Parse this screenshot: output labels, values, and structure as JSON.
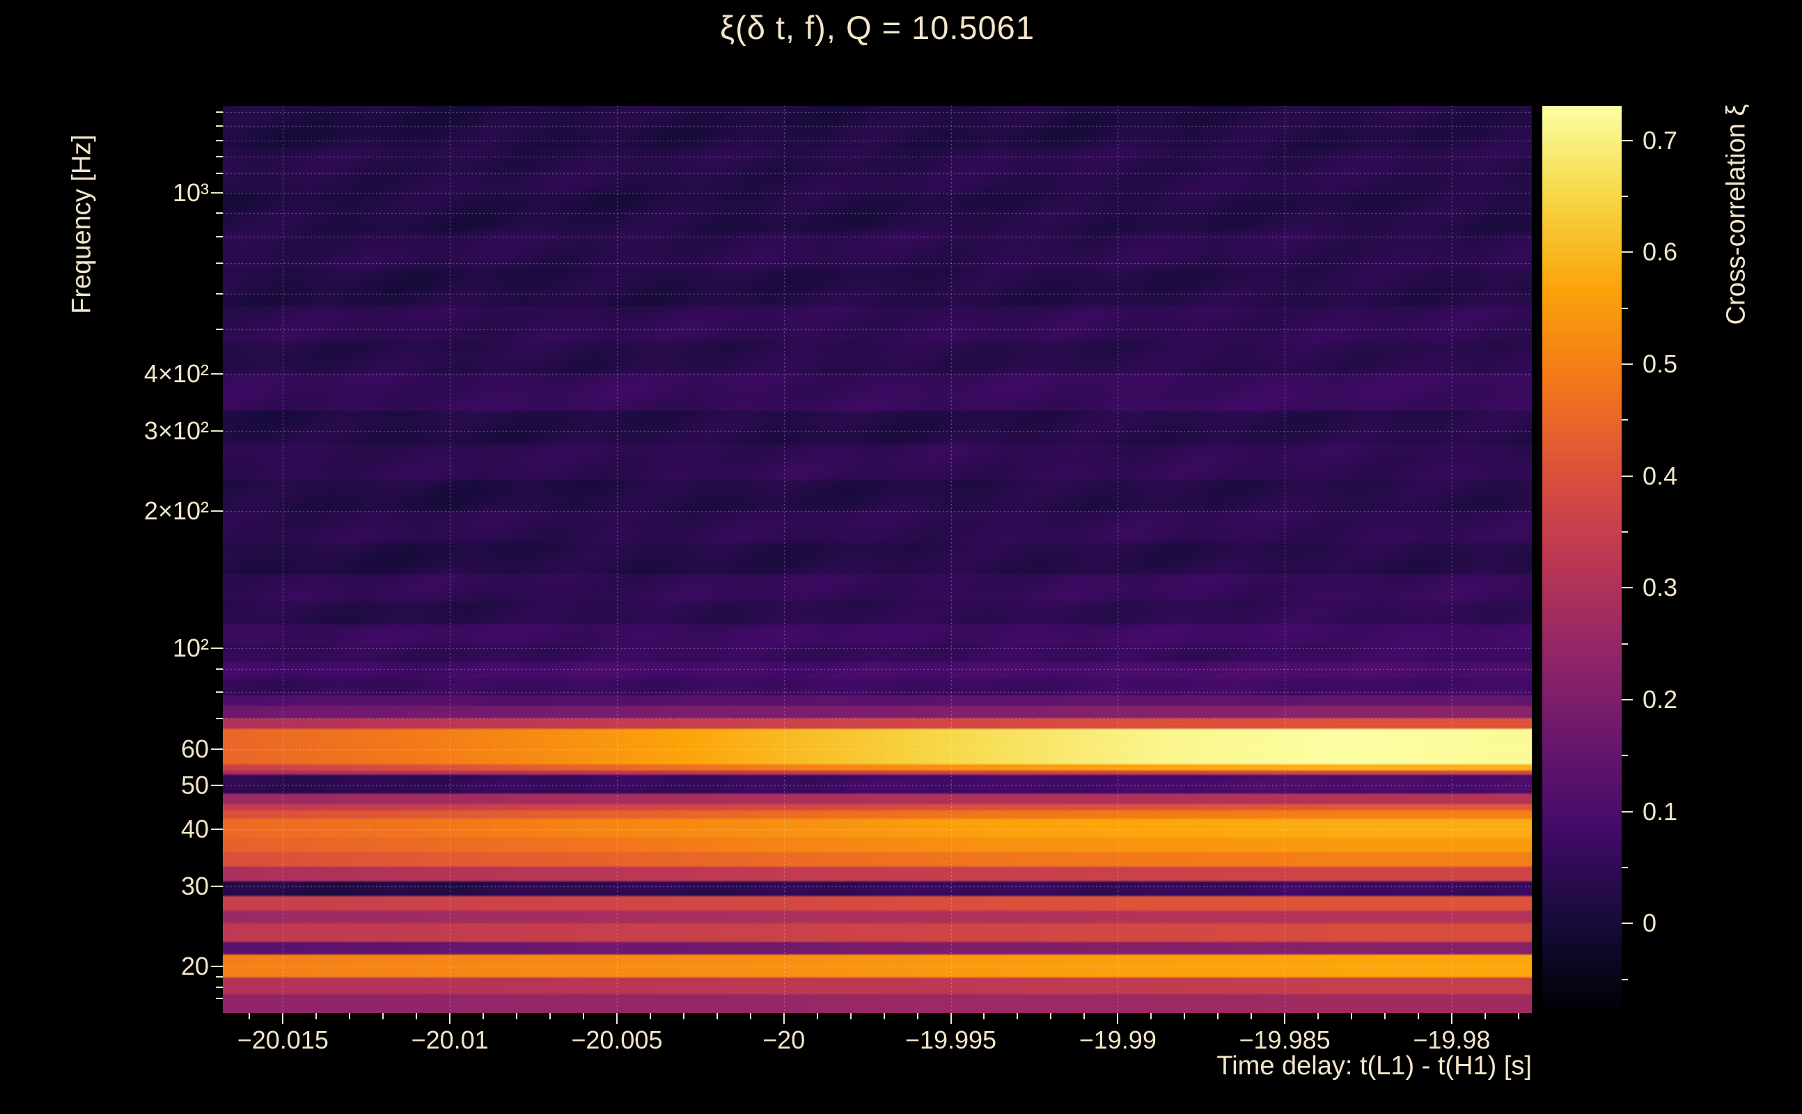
{
  "page": {
    "background": "#000000",
    "text_color": "#f3e5c9"
  },
  "chart_data": {
    "type": "heatmap",
    "title": "ξ(δ t, f), Q = 10.5061",
    "xlabel": "Time delay: t(L1) - t(H1) [s]",
    "ylabel": "Frequency [Hz]",
    "colorbar_label": "Cross-correlation ξ",
    "colormap": "inferno",
    "grid": "dotted",
    "x_range": [
      -20.0168,
      -19.9776
    ],
    "x_major_ticks": [
      -20.015,
      -20.01,
      -20.005,
      -20,
      -19.995,
      -19.99,
      -19.985,
      -19.98
    ],
    "x_tick_labels": [
      "−20.015",
      "−20.01",
      "−20.005",
      "−20",
      "−19.995",
      "−19.99",
      "−19.985",
      "−19.98"
    ],
    "x_minor_step": 0.001,
    "y_scale": "log",
    "y_range": [
      15.8,
      1550
    ],
    "y_major_ticks": [
      20,
      30,
      40,
      50,
      60,
      100,
      200,
      300,
      400,
      1000
    ],
    "y_tick_labels": [
      "20",
      "30",
      "40",
      "50",
      "60",
      "10²",
      "2×10²",
      "3×10²",
      "4×10²",
      "10³"
    ],
    "y_minor_ticks": [
      17,
      18,
      19,
      70,
      80,
      90,
      500,
      600,
      700,
      800,
      900,
      1100,
      1200,
      1300,
      1400,
      1500
    ],
    "grid_y": [
      20,
      30,
      40,
      50,
      60,
      70,
      80,
      90,
      100,
      200,
      300,
      400,
      500,
      600,
      700,
      800,
      900,
      1000,
      1100,
      1200,
      1300,
      1400,
      1500
    ],
    "z_range": [
      -0.08,
      0.731
    ],
    "colorbar_ticks": [
      0,
      0.1,
      0.2,
      0.3,
      0.4,
      0.5,
      0.6,
      0.7
    ],
    "colorbar_tick_labels": [
      "0",
      "0.1",
      "0.2",
      "0.3",
      "0.4",
      "0.5",
      "0.6",
      "0.7"
    ],
    "colorbar_minor_ticks": [
      -0.05,
      0.05,
      0.15,
      0.25,
      0.35,
      0.45,
      0.55,
      0.65
    ],
    "colormap_stops": [
      [
        0.0,
        0,
        0,
        4
      ],
      [
        0.1,
        22,
        11,
        57
      ],
      [
        0.2,
        66,
        10,
        104
      ],
      [
        0.3,
        106,
        23,
        110
      ],
      [
        0.4,
        147,
        38,
        103
      ],
      [
        0.5,
        188,
        55,
        84
      ],
      [
        0.6,
        221,
        81,
        58
      ],
      [
        0.7,
        243,
        120,
        25
      ],
      [
        0.8,
        252,
        165,
        10
      ],
      [
        0.9,
        246,
        215,
        70
      ],
      [
        1.0,
        252,
        255,
        164
      ]
    ],
    "time_bins": [
      -20.0168,
      -20.0112,
      -20.0056,
      -20.0,
      -19.9944,
      -19.9888,
      -19.9832,
      -19.9776
    ],
    "bands": [
      {
        "f_lo": 15.8,
        "f_hi": 17.3,
        "xi": [
          0.24,
          0.24,
          0.25,
          0.25,
          0.26,
          0.26,
          0.27,
          0.27
        ]
      },
      {
        "f_lo": 17.3,
        "f_hi": 19.0,
        "xi": [
          0.31,
          0.31,
          0.32,
          0.33,
          0.33,
          0.34,
          0.35,
          0.35
        ]
      },
      {
        "f_lo": 19.0,
        "f_hi": 21.3,
        "xi": [
          0.5,
          0.51,
          0.52,
          0.53,
          0.55,
          0.56,
          0.57,
          0.57
        ]
      },
      {
        "f_lo": 21.3,
        "f_hi": 22.6,
        "xi": [
          0.13,
          0.15,
          0.17,
          0.18,
          0.2,
          0.21,
          0.22,
          0.22
        ]
      },
      {
        "f_lo": 22.6,
        "f_hi": 24.8,
        "xi": [
          0.33,
          0.34,
          0.35,
          0.36,
          0.37,
          0.38,
          0.39,
          0.39
        ]
      },
      {
        "f_lo": 24.8,
        "f_hi": 26.6,
        "xi": [
          0.26,
          0.27,
          0.28,
          0.29,
          0.3,
          0.31,
          0.31,
          0.31
        ]
      },
      {
        "f_lo": 26.6,
        "f_hi": 28.5,
        "xi": [
          0.35,
          0.36,
          0.37,
          0.38,
          0.4,
          0.41,
          0.41,
          0.41
        ]
      },
      {
        "f_lo": 28.5,
        "f_hi": 30.8,
        "xi": [
          0.02,
          0.03,
          0.04,
          0.05,
          0.06,
          0.06,
          0.07,
          0.07
        ]
      },
      {
        "f_lo": 30.8,
        "f_hi": 33.0,
        "xi": [
          0.29,
          0.31,
          0.32,
          0.34,
          0.35,
          0.36,
          0.37,
          0.37
        ]
      },
      {
        "f_lo": 33.0,
        "f_hi": 35.5,
        "xi": [
          0.4,
          0.42,
          0.44,
          0.46,
          0.48,
          0.49,
          0.5,
          0.5
        ]
      },
      {
        "f_lo": 35.5,
        "f_hi": 38.5,
        "xi": [
          0.44,
          0.46,
          0.48,
          0.51,
          0.53,
          0.54,
          0.55,
          0.55
        ]
      },
      {
        "f_lo": 38.5,
        "f_hi": 42.0,
        "xi": [
          0.46,
          0.48,
          0.51,
          0.53,
          0.56,
          0.57,
          0.58,
          0.58
        ]
      },
      {
        "f_lo": 42.0,
        "f_hi": 44.0,
        "xi": [
          0.4,
          0.42,
          0.44,
          0.46,
          0.48,
          0.49,
          0.5,
          0.5
        ]
      },
      {
        "f_lo": 44.0,
        "f_hi": 45.5,
        "xi": [
          0.34,
          0.35,
          0.37,
          0.38,
          0.4,
          0.41,
          0.42,
          0.42
        ]
      },
      {
        "f_lo": 45.5,
        "f_hi": 48.0,
        "xi": [
          0.26,
          0.27,
          0.28,
          0.29,
          0.3,
          0.3,
          0.31,
          0.31
        ]
      },
      {
        "f_lo": 48.0,
        "f_hi": 52.5,
        "xi": [
          0.04,
          0.05,
          0.06,
          0.07,
          0.08,
          0.09,
          0.1,
          0.1
        ]
      },
      {
        "f_lo": 52.5,
        "f_hi": 54.0,
        "xi": [
          0.28,
          0.3,
          0.32,
          0.34,
          0.36,
          0.37,
          0.38,
          0.38
        ]
      },
      {
        "f_lo": 54.0,
        "f_hi": 55.5,
        "xi": [
          0.36,
          0.4,
          0.45,
          0.5,
          0.54,
          0.57,
          0.59,
          0.59
        ]
      },
      {
        "f_lo": 55.5,
        "f_hi": 66.5,
        "xi": [
          0.45,
          0.49,
          0.54,
          0.6,
          0.66,
          0.71,
          0.73,
          0.72
        ]
      },
      {
        "f_lo": 66.5,
        "f_hi": 70.0,
        "xi": [
          0.3,
          0.32,
          0.34,
          0.36,
          0.38,
          0.4,
          0.41,
          0.41
        ]
      },
      {
        "f_lo": 70.0,
        "f_hi": 74.5,
        "xi": [
          0.17,
          0.18,
          0.19,
          0.2,
          0.21,
          0.22,
          0.23,
          0.23
        ]
      },
      {
        "f_lo": 74.5,
        "f_hi": 79.0,
        "xi": [
          0.11,
          0.12,
          0.12,
          0.13,
          0.14,
          0.14,
          0.15,
          0.15
        ]
      },
      {
        "f_lo": 79.0,
        "f_hi": 86.0,
        "xi": [
          0.06,
          0.06,
          0.07,
          0.07,
          0.07,
          0.08,
          0.08,
          0.08
        ]
      },
      {
        "f_lo": 86.0,
        "f_hi": 93.0,
        "xi": [
          0.08,
          0.08,
          0.09,
          0.09,
          0.09,
          0.1,
          0.1,
          0.1
        ]
      },
      {
        "f_lo": 93.0,
        "f_hi": 102.0,
        "xi": [
          0.05,
          0.05,
          0.06,
          0.06,
          0.06,
          0.06,
          0.07,
          0.07
        ]
      },
      {
        "f_lo": 102.0,
        "f_hi": 113.0,
        "xi": [
          0.065,
          0.065,
          0.07,
          0.07,
          0.075,
          0.075,
          0.08,
          0.08
        ]
      },
      {
        "f_lo": 113.0,
        "f_hi": 127.0,
        "xi": [
          0.03,
          0.03,
          0.035,
          0.04,
          0.04,
          0.045,
          0.05,
          0.05
        ]
      },
      {
        "f_lo": 127.0,
        "f_hi": 146.0,
        "xi": [
          0.05,
          0.05,
          0.05,
          0.055,
          0.055,
          0.06,
          0.06,
          0.06
        ]
      },
      {
        "f_lo": 146.0,
        "f_hi": 170.0,
        "xi": [
          0.02,
          0.02,
          0.025,
          0.025,
          0.03,
          0.03,
          0.03,
          0.03
        ]
      },
      {
        "f_lo": 170.0,
        "f_hi": 200.0,
        "xi": [
          0.04,
          0.04,
          0.04,
          0.045,
          0.045,
          0.05,
          0.05,
          0.05
        ]
      },
      {
        "f_lo": 200.0,
        "f_hi": 235.0,
        "xi": [
          0.02,
          0.02,
          0.02,
          0.025,
          0.025,
          0.03,
          0.03,
          0.03
        ]
      },
      {
        "f_lo": 235.0,
        "f_hi": 280.0,
        "xi": [
          0.045,
          0.045,
          0.045,
          0.05,
          0.05,
          0.05,
          0.05,
          0.05
        ]
      },
      {
        "f_lo": 280.0,
        "f_hi": 330.0,
        "xi": [
          0.02,
          0.02,
          0.025,
          0.025,
          0.025,
          0.03,
          0.03,
          0.03
        ]
      },
      {
        "f_lo": 330.0,
        "f_hi": 400.0,
        "xi": [
          0.055,
          0.055,
          0.06,
          0.06,
          0.06,
          0.065,
          0.065,
          0.065
        ]
      },
      {
        "f_lo": 400.0,
        "f_hi": 470.0,
        "xi": [
          0.03,
          0.03,
          0.03,
          0.035,
          0.035,
          0.035,
          0.04,
          0.04
        ]
      },
      {
        "f_lo": 470.0,
        "f_hi": 560.0,
        "xi": [
          0.045,
          0.045,
          0.045,
          0.05,
          0.05,
          0.05,
          0.05,
          0.05
        ]
      },
      {
        "f_lo": 560.0,
        "f_hi": 680.0,
        "xi": [
          0.02,
          0.02,
          0.02,
          0.025,
          0.025,
          0.025,
          0.03,
          0.03
        ]
      },
      {
        "f_lo": 680.0,
        "f_hi": 820.0,
        "xi": [
          0.035,
          0.035,
          0.035,
          0.04,
          0.04,
          0.04,
          0.04,
          0.04
        ]
      },
      {
        "f_lo": 820.0,
        "f_hi": 1000.0,
        "xi": [
          0.02,
          0.02,
          0.02,
          0.02,
          0.025,
          0.025,
          0.025,
          0.025
        ]
      },
      {
        "f_lo": 1000.0,
        "f_hi": 1250.0,
        "xi": [
          0.03,
          0.03,
          0.03,
          0.03,
          0.035,
          0.035,
          0.035,
          0.035
        ]
      },
      {
        "f_lo": 1250.0,
        "f_hi": 1550.0,
        "xi": [
          0.015,
          0.015,
          0.02,
          0.02,
          0.02,
          0.02,
          0.025,
          0.025
        ]
      }
    ]
  }
}
